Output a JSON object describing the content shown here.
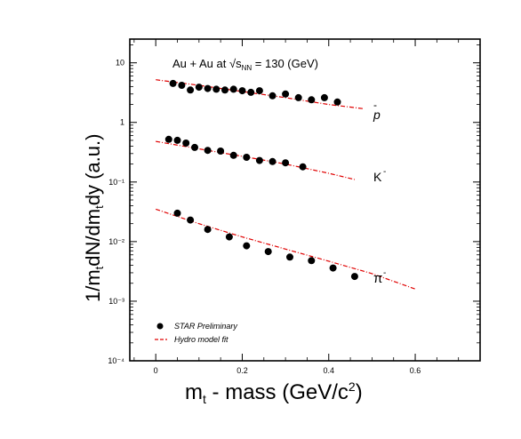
{
  "chart_data": {
    "type": "scatter",
    "title": "Au + Au at √s",
    "title_subscript": "NN",
    "title_suffix": " = 130 (GeV)",
    "xlabel": "m",
    "xlabel_sub": "t",
    "xlabel_rest": " - mass (GeV/c",
    "xlabel_sup": "2",
    "xlabel_end": ")",
    "ylabel": "1/m",
    "ylabel_sub1": "t",
    "ylabel_mid": "dN/dm",
    "ylabel_sub2": "t",
    "ylabel_end": "dy (a.u.)",
    "xlim": [
      -0.06,
      0.75
    ],
    "ylim": [
      0.0001,
      25
    ],
    "yscale": "log",
    "x_ticks": [
      {
        "value": 0,
        "label": "0"
      },
      {
        "value": 0.2,
        "label": "0.2"
      },
      {
        "value": 0.4,
        "label": "0.4"
      },
      {
        "value": 0.6,
        "label": "0.6"
      }
    ],
    "y_ticks": [
      {
        "value": 10,
        "label": "10"
      },
      {
        "value": 1,
        "label": "1"
      },
      {
        "value": 0.1,
        "label": "10⁻¹"
      },
      {
        "value": 0.01,
        "label": "10⁻²"
      },
      {
        "value": 0.001,
        "label": "10⁻³"
      },
      {
        "value": 0.0001,
        "label": "10⁻⁴"
      }
    ],
    "legend": {
      "position": "bottom-left",
      "entries": [
        {
          "label": "STAR Preliminary",
          "kind": "marker"
        },
        {
          "label": "Hydro model fit",
          "kind": "line"
        }
      ]
    },
    "series": [
      {
        "name": "p̄",
        "kind": "points",
        "x": [
          0.04,
          0.06,
          0.08,
          0.1,
          0.12,
          0.14,
          0.16,
          0.18,
          0.2,
          0.22,
          0.24,
          0.27,
          0.3,
          0.33,
          0.36,
          0.39,
          0.42
        ],
        "y": [
          4.5,
          4.2,
          3.5,
          3.9,
          3.7,
          3.6,
          3.5,
          3.6,
          3.4,
          3.2,
          3.4,
          2.8,
          3.0,
          2.6,
          2.4,
          2.6,
          2.2
        ]
      },
      {
        "name": "p̄ fit",
        "kind": "line",
        "x": [
          0.0,
          0.1,
          0.2,
          0.3,
          0.4,
          0.48
        ],
        "y": [
          5.2,
          4.2,
          3.3,
          2.6,
          2.0,
          1.7
        ]
      },
      {
        "name": "K⁻",
        "kind": "points",
        "x": [
          0.03,
          0.05,
          0.07,
          0.09,
          0.12,
          0.15,
          0.18,
          0.21,
          0.24,
          0.27,
          0.3,
          0.34
        ],
        "y": [
          0.52,
          0.5,
          0.45,
          0.38,
          0.34,
          0.33,
          0.28,
          0.26,
          0.23,
          0.22,
          0.21,
          0.18
        ]
      },
      {
        "name": "K⁻ fit",
        "kind": "line",
        "x": [
          0.0,
          0.1,
          0.2,
          0.3,
          0.4,
          0.46
        ],
        "y": [
          0.48,
          0.36,
          0.27,
          0.2,
          0.14,
          0.11
        ]
      },
      {
        "name": "π⁻",
        "kind": "points",
        "x": [
          0.05,
          0.08,
          0.12,
          0.17,
          0.21,
          0.26,
          0.31,
          0.36,
          0.41,
          0.46
        ],
        "y": [
          0.03,
          0.023,
          0.016,
          0.012,
          0.0085,
          0.0068,
          0.0055,
          0.0048,
          0.0036,
          0.0026
        ]
      },
      {
        "name": "π⁻ fit",
        "kind": "line",
        "x": [
          0.0,
          0.1,
          0.2,
          0.3,
          0.4,
          0.5,
          0.6
        ],
        "y": [
          0.035,
          0.02,
          0.012,
          0.0075,
          0.0047,
          0.0029,
          0.0016
        ]
      }
    ],
    "species_labels": [
      "p",
      "K",
      "π"
    ],
    "species_label_marks": [
      "-",
      "-",
      "-"
    ],
    "marker_color": "#000000",
    "fit_color": "#e00000"
  }
}
